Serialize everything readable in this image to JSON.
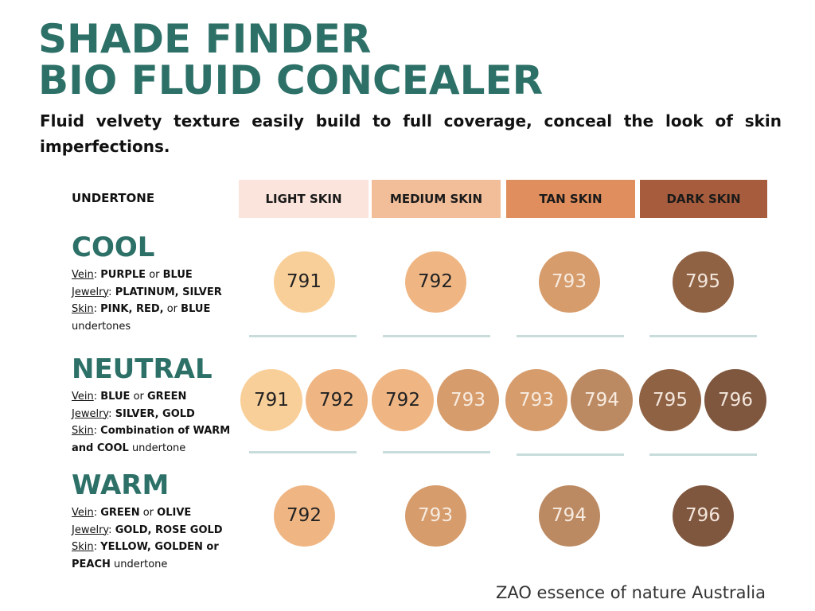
{
  "title_line1": "SHADE FINDER",
  "title_line2": "BIO FLUID CONCEALER",
  "subtitle": "Fluid velvety texture easily build to full coverage, conceal the look of skin imperfections.",
  "undertone_label": "UNDERTONE",
  "columns": [
    {
      "label": "LIGHT SKIN",
      "color": "#fbe4db"
    },
    {
      "label": "MEDIUM SKIN",
      "color": "#f2be9a"
    },
    {
      "label": "TAN SKIN",
      "color": "#e08e5d"
    },
    {
      "label": "DARK SKIN",
      "color": "#a75d3d"
    }
  ],
  "shade_colors": {
    "791": "#f9cf99",
    "792": "#efb684",
    "793": "#d69c6c",
    "794": "#bc8a62",
    "795": "#8f6244",
    "796": "#7f563e"
  },
  "rows": [
    {
      "name": "COOL",
      "vein_label": "Vein",
      "vein_value_a": "PURPLE",
      "vein_or": "or",
      "vein_value_b": "BLUE",
      "jewelry_label": "Jewelry",
      "jewelry_value": "PLATINUM, SILVER",
      "skin_label": "Skin",
      "skin_value_a": "PINK, RED,",
      "skin_or": "or",
      "skin_value_b": "BLUE",
      "skin_suffix": "undertones",
      "shades": [
        [
          "791"
        ],
        [
          "792"
        ],
        [
          "793"
        ],
        [
          "795"
        ]
      ]
    },
    {
      "name": "NEUTRAL",
      "vein_label": "Vein",
      "vein_value_a": "BLUE",
      "vein_or": "or",
      "vein_value_b": "GREEN",
      "jewelry_label": "Jewelry",
      "jewelry_value": "SILVER, GOLD",
      "skin_label": "Skin",
      "skin_value_a": "Combination of WARM and COOL",
      "skin_suffix": "undertone",
      "shades": [
        [
          "791",
          "792"
        ],
        [
          "792",
          "793"
        ],
        [
          "793",
          "794"
        ],
        [
          "795",
          "796"
        ]
      ]
    },
    {
      "name": "WARM",
      "vein_label": "Vein",
      "vein_value_a": "GREEN",
      "vein_or": "or",
      "vein_value_b": "OLIVE",
      "jewelry_label": "Jewelry",
      "jewelry_value": "GOLD, ROSE GOLD",
      "skin_label": "Skin",
      "skin_value_a": "YELLOW, GOLDEN or PEACH",
      "skin_suffix": "undertone",
      "shades": [
        [
          "792"
        ],
        [
          "793"
        ],
        [
          "794"
        ],
        [
          "796"
        ]
      ]
    }
  ],
  "brand": "ZAO essence of nature Australia",
  "accent_color": "#2c7067",
  "divider_color": "#c7dcdb"
}
